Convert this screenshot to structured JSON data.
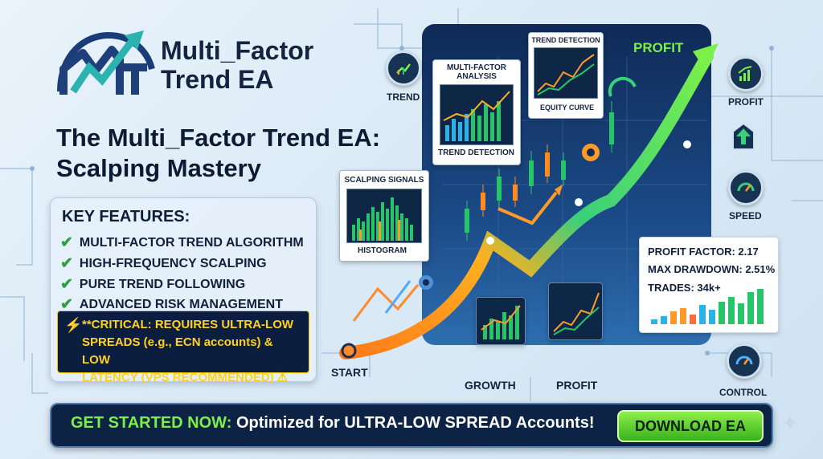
{
  "logo": {
    "line1": "Multi_Factor",
    "line2": "Trend EA",
    "mark": "trend-arrow-logo"
  },
  "headline": {
    "line1": "The Multi_Factor Trend EA:",
    "line2": "Scalping Mastery"
  },
  "features": {
    "title": "KEY FEATURES:",
    "items": [
      "MULTI-FACTOR TREND ALGORITHM",
      "HIGH-FREQUENCY SCALPING",
      "PURE TREND FOLLOWING",
      "ADVANCED RISK MANAGEMENT"
    ],
    "critical_line1": "**CRITICAL: REQUIRES ULTRA-LOW",
    "critical_line2": "SPREADS (e.g., ECN accounts) & LOW",
    "critical_line3": "LATENCY (VPS RECOMMENDED)"
  },
  "cards": {
    "trend_detection_top": "TREND DETECTION",
    "equity_curve": "EQUITY CURVE",
    "multi_factor": "MULTI-FACTOR ANALYSIS",
    "trend_detection_bottom": "TREND DETECTION",
    "scalping_signals": "SCALPING SIGNALS",
    "histogram": "HISTOGRAM"
  },
  "chart": {
    "profit_top": "PROFIT",
    "start": "START",
    "growth": "GROWTH",
    "profit_bottom": "PROFIT"
  },
  "left_icon": {
    "label": "TREND"
  },
  "right_icons": {
    "profit": "PROFIT",
    "speed": "SPEED",
    "control": "CONTROL"
  },
  "stats": {
    "profit_factor": "PROFIT FACTOR: 2.17",
    "max_drawdown": "MAX DRAWDOWN: 2.51%",
    "trades": "TRADES: 34k+"
  },
  "banner": {
    "lead": "GET STARTED NOW:",
    "text": "Optimized for ULTRA-LOW SPREAD Accounts!",
    "button": "DOWNLOAD EA"
  },
  "colors": {
    "accent_green": "#6fe03a",
    "navy": "#0c2346",
    "warning_yellow": "#ffd21f"
  }
}
